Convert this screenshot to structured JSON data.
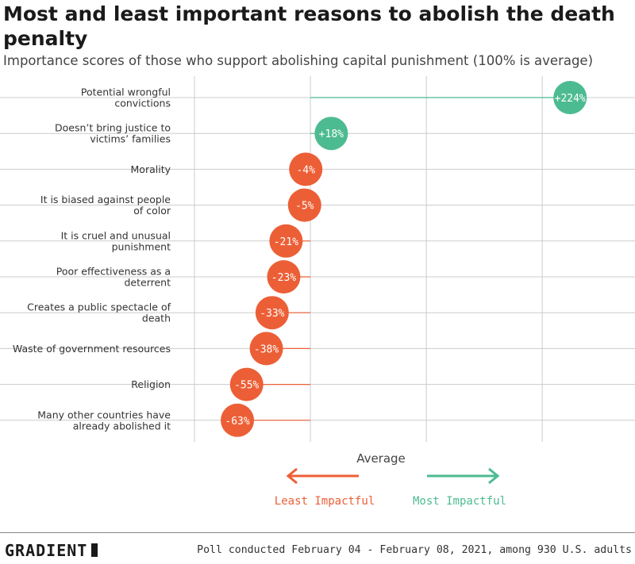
{
  "title": "Most and least important reasons to abolish the death penalty",
  "subtitle": "Importance scores of those who support abolishing capital punishment (100% is average)",
  "footer": {
    "brand": "GRADIENT",
    "note": "Poll conducted February 04 - February 08, 2021, among 930 U.S. adults"
  },
  "colors": {
    "positive": "#4dbb91",
    "negative": "#ec5f36",
    "grid": "#cccccc",
    "text": "#333333"
  },
  "chart_data": {
    "type": "dot",
    "xlim": [
      -100,
      280
    ],
    "grid": true,
    "center_label": "Average",
    "legend": {
      "least": "Least Impactful",
      "most": "Most Impactful"
    },
    "categories": [
      [
        "Potential wrongful",
        "convictions"
      ],
      [
        "Doesn’t bring justice to",
        "victims’ families"
      ],
      [
        "Morality"
      ],
      [
        "It is biased against people",
        "of color"
      ],
      [
        "It is cruel and unusual",
        "punishment"
      ],
      [
        "Poor effectiveness as a",
        "deterrent"
      ],
      [
        "Creates a public spectacle of",
        "death"
      ],
      [
        "Waste of government resources"
      ],
      [
        "Religion"
      ],
      [
        "Many other countries have",
        "already abolished it"
      ]
    ],
    "values": [
      224,
      18,
      -4,
      -5,
      -21,
      -23,
      -33,
      -38,
      -55,
      -63
    ],
    "labels": [
      "+224%",
      "+18%",
      "-4%",
      "-5%",
      "-21%",
      "-23%",
      "-33%",
      "-38%",
      "-55%",
      "-63%"
    ]
  }
}
